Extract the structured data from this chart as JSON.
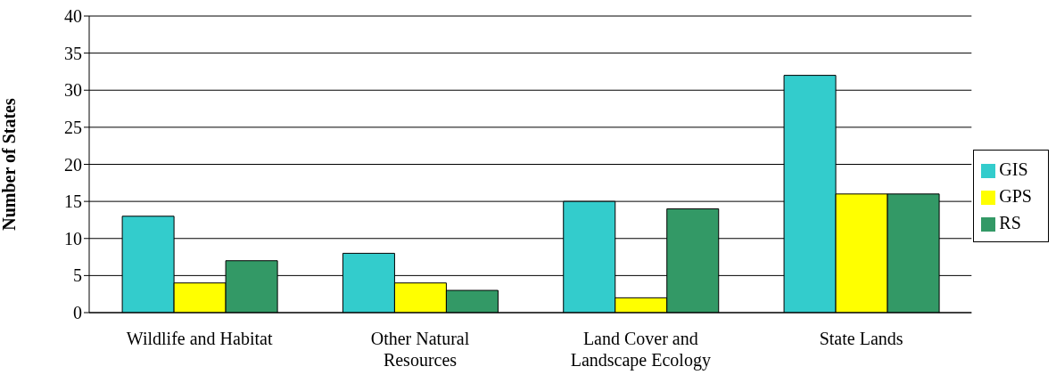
{
  "chart_data": {
    "type": "bar",
    "ylabel": "Number of States",
    "categories": [
      "Wildlife and Habitat",
      "Other Natural Resources",
      "Land Cover and Landscape Ecology",
      "State Lands"
    ],
    "series": [
      {
        "name": "GIS",
        "color": "#33cccc",
        "values": [
          13,
          8,
          15,
          32
        ]
      },
      {
        "name": "GPS",
        "color": "#ffff00",
        "values": [
          4,
          4,
          2,
          16
        ]
      },
      {
        "name": "RS",
        "color": "#339966",
        "values": [
          7,
          3,
          14,
          16
        ]
      }
    ],
    "ylim": [
      0,
      40
    ],
    "yticks": [
      0,
      5,
      10,
      15,
      20,
      25,
      30,
      35,
      40
    ],
    "grid": "y",
    "legend": "right"
  }
}
